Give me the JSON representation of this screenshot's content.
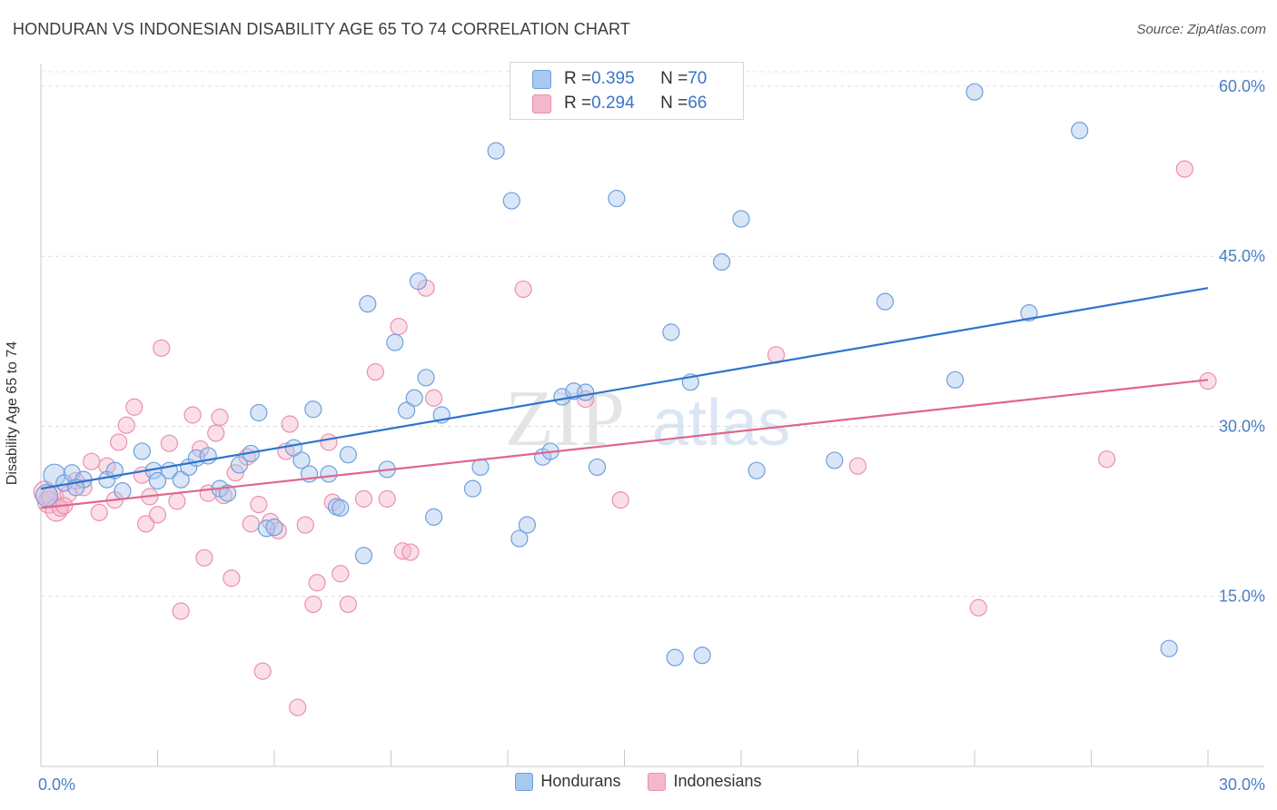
{
  "title": "HONDURAN VS INDONESIAN DISABILITY AGE 65 TO 74 CORRELATION CHART",
  "source": "Source: ZipAtlas.com",
  "watermark": {
    "part1": "ZIP",
    "part2": "atlas"
  },
  "legend_top": {
    "rows": [
      {
        "r_label": "R = ",
        "r_value": "0.395",
        "n_label": "N = ",
        "n_value": "70",
        "color": "#a9c8ef"
      },
      {
        "r_label": "R = ",
        "r_value": "0.294",
        "n_label": "N = ",
        "n_value": "66",
        "color": "#f5b7cb"
      }
    ]
  },
  "legend_bottom": [
    {
      "label": "Hondurans",
      "color": "#a9c8ef"
    },
    {
      "label": "Indonesians",
      "color": "#f5b7cb"
    }
  ],
  "chart_data": {
    "type": "scatter",
    "ylabel": "Disability Age 65 to 74",
    "xlim": [
      0,
      30
    ],
    "ylim": [
      0,
      62
    ],
    "x_tick_labels": [
      "0.0%",
      "30.0%"
    ],
    "y_ticks": [
      15,
      30,
      45,
      60
    ],
    "y_tick_labels": [
      "15.0%",
      "30.0%",
      "45.0%",
      "60.0%"
    ],
    "grid": true,
    "series": [
      {
        "name": "Hondurans",
        "color": "#6f9fdc",
        "fill": "#a9c8ef",
        "trend": {
          "x": [
            0,
            30
          ],
          "y": [
            24.5,
            42.2
          ],
          "color": "#2f74cc"
        },
        "points": [
          [
            0.35,
            25.7
          ],
          [
            0.6,
            25.0
          ],
          [
            0.8,
            25.9
          ],
          [
            0.15,
            23.9
          ],
          [
            1.1,
            25.3
          ],
          [
            1.7,
            25.3
          ],
          [
            1.9,
            26.1
          ],
          [
            2.1,
            24.3
          ],
          [
            2.6,
            27.8
          ],
          [
            2.9,
            26.1
          ],
          [
            3.0,
            25.2
          ],
          [
            3.3,
            26.1
          ],
          [
            3.6,
            25.3
          ],
          [
            3.8,
            26.4
          ],
          [
            4.0,
            27.2
          ],
          [
            4.3,
            27.4
          ],
          [
            4.6,
            24.5
          ],
          [
            4.8,
            24.1
          ],
          [
            5.1,
            26.6
          ],
          [
            5.4,
            27.6
          ],
          [
            5.6,
            31.2
          ],
          [
            5.8,
            21.0
          ],
          [
            6.0,
            21.1
          ],
          [
            6.5,
            28.1
          ],
          [
            6.7,
            27.0
          ],
          [
            6.9,
            25.8
          ],
          [
            7.0,
            31.5
          ],
          [
            7.4,
            25.8
          ],
          [
            7.6,
            22.9
          ],
          [
            7.7,
            22.8
          ],
          [
            7.9,
            27.5
          ],
          [
            8.3,
            18.6
          ],
          [
            8.4,
            40.8
          ],
          [
            8.9,
            26.2
          ],
          [
            9.1,
            37.4
          ],
          [
            9.4,
            31.4
          ],
          [
            9.6,
            32.5
          ],
          [
            9.7,
            42.8
          ],
          [
            9.9,
            34.3
          ],
          [
            10.3,
            31.0
          ],
          [
            10.1,
            22.0
          ],
          [
            11.1,
            24.5
          ],
          [
            11.3,
            26.4
          ],
          [
            11.7,
            54.3
          ],
          [
            12.1,
            49.9
          ],
          [
            12.3,
            20.1
          ],
          [
            12.5,
            21.3
          ],
          [
            12.9,
            27.3
          ],
          [
            13.1,
            27.8
          ],
          [
            13.4,
            32.6
          ],
          [
            13.7,
            33.1
          ],
          [
            14.0,
            33.0
          ],
          [
            14.3,
            26.4
          ],
          [
            14.8,
            50.1
          ],
          [
            15.7,
            58.4
          ],
          [
            16.2,
            38.3
          ],
          [
            16.3,
            9.6
          ],
          [
            16.7,
            33.9
          ],
          [
            17.0,
            9.8
          ],
          [
            17.5,
            44.5
          ],
          [
            18.0,
            48.3
          ],
          [
            18.4,
            26.1
          ],
          [
            20.4,
            27.0
          ],
          [
            21.7,
            41.0
          ],
          [
            23.5,
            34.1
          ],
          [
            24.0,
            59.5
          ],
          [
            25.4,
            40.0
          ],
          [
            26.7,
            56.1
          ],
          [
            29.0,
            10.4
          ],
          [
            0.9,
            24.6
          ]
        ]
      },
      {
        "name": "Indonesians",
        "color": "#ec90ac",
        "fill": "#f5b7cb",
        "trend": {
          "x": [
            0,
            30
          ],
          "y": [
            22.8,
            34.1
          ],
          "color": "#e0668f"
        },
        "points": [
          [
            0.1,
            24.2
          ],
          [
            0.2,
            23.3
          ],
          [
            0.3,
            23.8
          ],
          [
            0.4,
            22.6
          ],
          [
            0.5,
            22.8
          ],
          [
            0.7,
            24.0
          ],
          [
            0.9,
            25.2
          ],
          [
            1.1,
            24.6
          ],
          [
            1.3,
            26.9
          ],
          [
            1.5,
            22.4
          ],
          [
            1.7,
            26.5
          ],
          [
            1.9,
            23.5
          ],
          [
            2.0,
            28.6
          ],
          [
            2.2,
            30.1
          ],
          [
            2.4,
            31.7
          ],
          [
            2.6,
            25.7
          ],
          [
            2.7,
            21.4
          ],
          [
            2.8,
            23.8
          ],
          [
            3.0,
            22.2
          ],
          [
            3.1,
            36.9
          ],
          [
            3.3,
            28.5
          ],
          [
            3.5,
            23.4
          ],
          [
            3.6,
            13.7
          ],
          [
            3.9,
            31.0
          ],
          [
            4.1,
            28.0
          ],
          [
            4.2,
            18.4
          ],
          [
            4.3,
            24.1
          ],
          [
            4.5,
            29.4
          ],
          [
            4.6,
            30.8
          ],
          [
            4.7,
            23.9
          ],
          [
            4.9,
            16.6
          ],
          [
            5.0,
            25.9
          ],
          [
            5.3,
            27.3
          ],
          [
            5.4,
            21.4
          ],
          [
            5.6,
            23.1
          ],
          [
            5.7,
            8.4
          ],
          [
            5.9,
            21.6
          ],
          [
            6.1,
            20.8
          ],
          [
            6.3,
            27.8
          ],
          [
            6.4,
            30.2
          ],
          [
            6.6,
            5.2
          ],
          [
            6.8,
            21.3
          ],
          [
            7.0,
            14.3
          ],
          [
            7.1,
            16.2
          ],
          [
            7.4,
            28.6
          ],
          [
            7.5,
            23.3
          ],
          [
            7.7,
            17.0
          ],
          [
            7.9,
            14.3
          ],
          [
            8.3,
            23.6
          ],
          [
            8.6,
            34.8
          ],
          [
            8.9,
            23.6
          ],
          [
            9.2,
            38.8
          ],
          [
            9.3,
            19.0
          ],
          [
            9.5,
            18.9
          ],
          [
            9.9,
            42.2
          ],
          [
            10.1,
            32.5
          ],
          [
            12.4,
            42.1
          ],
          [
            14.0,
            32.4
          ],
          [
            14.9,
            23.5
          ],
          [
            18.9,
            36.3
          ],
          [
            21.0,
            26.5
          ],
          [
            24.1,
            14.0
          ],
          [
            27.4,
            27.1
          ],
          [
            29.4,
            52.7
          ],
          [
            30.0,
            34.0
          ],
          [
            0.6,
            23.0
          ]
        ]
      }
    ]
  }
}
